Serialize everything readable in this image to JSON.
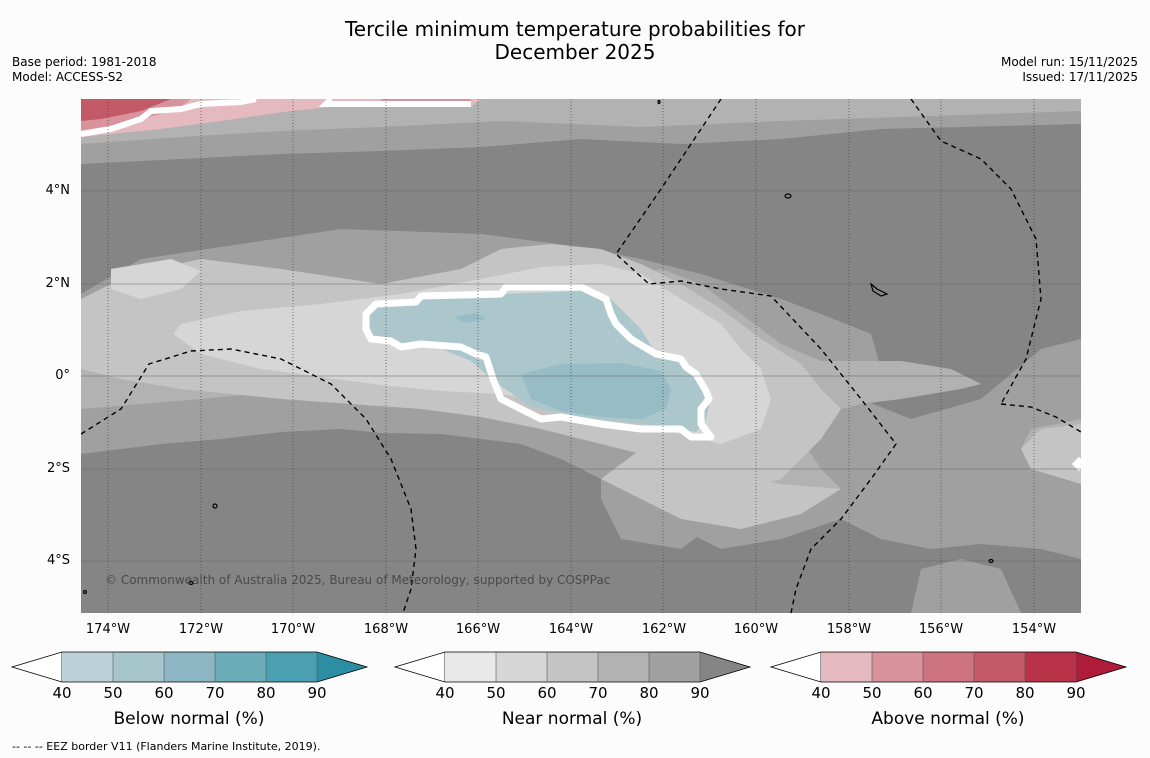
{
  "title_line1": "Tercile minimum temperature probabilities for",
  "title_line2": "December 2025",
  "base_period": "Base period: 1981-2018",
  "model": "Model: ACCESS-S2",
  "model_run": "Model run: 15/11/2025",
  "issued": "Issued: 17/11/2025",
  "lat_labels": [
    "4°N",
    "2°N",
    "0°",
    "2°S",
    "4°S"
  ],
  "lon_labels": [
    "174°W",
    "172°W",
    "170°W",
    "168°W",
    "166°W",
    "164°W",
    "162°W",
    "160°W",
    "158°W",
    "156°W",
    "154°W"
  ],
  "credit": "© Commonwealth of Australia 2025, Bureau of Meteorology, supported by COSPPac",
  "colorbars": [
    {
      "label": "Below normal (%)",
      "ticks": [
        "40",
        "50",
        "60",
        "70",
        "80",
        "90"
      ],
      "colors": [
        "#bcd2d8",
        "#a6c6cb",
        "#8cb6c3",
        "#6cadba",
        "#4a9fb0",
        "#2c8ea3"
      ]
    },
    {
      "label": "Near normal (%)",
      "ticks": [
        "40",
        "50",
        "60",
        "70",
        "80",
        "90"
      ],
      "colors": [
        "#e8e8e8",
        "#d6d6d6",
        "#c4c4c4",
        "#b2b2b2",
        "#a0a0a0",
        "#858585"
      ]
    },
    {
      "label": "Above normal (%)",
      "ticks": [
        "40",
        "50",
        "60",
        "70",
        "80",
        "90"
      ],
      "colors": [
        "#e4b9bf",
        "#d8939c",
        "#cd7480",
        "#c35a68",
        "#b83248",
        "#ae1c3a"
      ]
    }
  ],
  "footer": "--  --  -- EEZ border V11 (Flanders Marine Institute, 2019)."
}
